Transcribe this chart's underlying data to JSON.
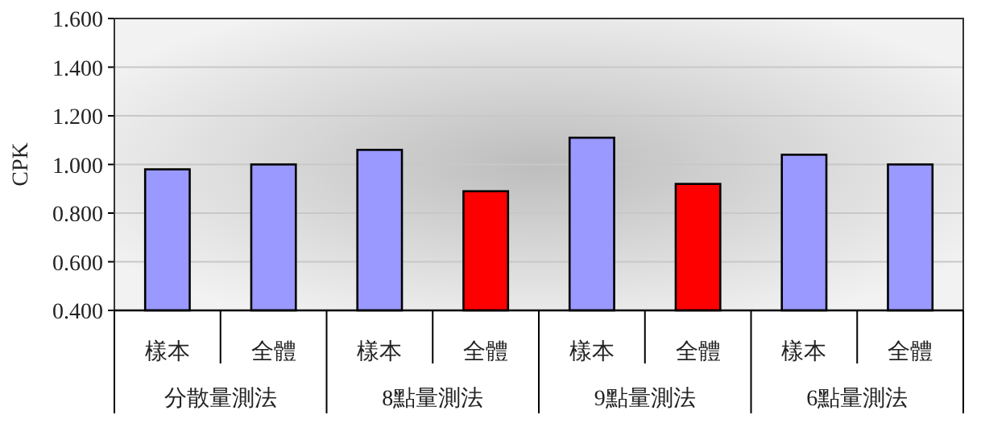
{
  "chart_data": {
    "type": "bar",
    "ylabel": "CPK",
    "categories": [
      "樣本",
      "全體",
      "樣本",
      "全體",
      "樣本",
      "全體",
      "樣本",
      "全體"
    ],
    "values": [
      0.98,
      1.0,
      1.06,
      0.89,
      1.11,
      0.92,
      1.04,
      1.0
    ],
    "colors": [
      "#9999ff",
      "#9999ff",
      "#9999ff",
      "#ff0000",
      "#9999ff",
      "#ff0000",
      "#9999ff",
      "#9999ff"
    ],
    "ylim": [
      0.4,
      1.6
    ],
    "yticks": [
      {
        "value": 0.4,
        "label": "0.400"
      },
      {
        "value": 0.6,
        "label": "0.600"
      },
      {
        "value": 0.8,
        "label": "0.800"
      },
      {
        "value": 1.0,
        "label": "1.000"
      },
      {
        "value": 1.2,
        "label": "1.200"
      },
      {
        "value": 1.4,
        "label": "1.400"
      },
      {
        "value": 1.6,
        "label": "1.600"
      }
    ],
    "grid": "y",
    "annotations": [
      "分散量測法",
      "8點量測法",
      "9點量測法",
      "6點量測法"
    ]
  }
}
